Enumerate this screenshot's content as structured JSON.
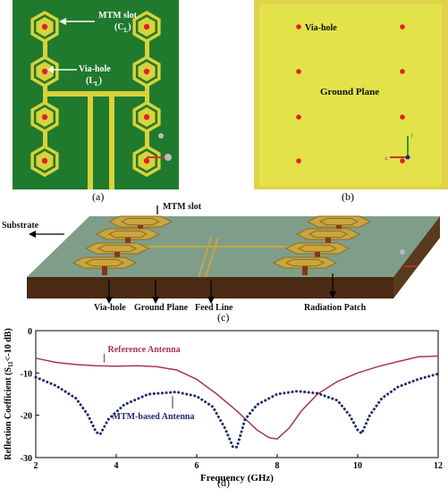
{
  "figure": {
    "panel_a": {
      "caption": "(a)",
      "mtm_slot_label": "MTM slot",
      "mtm_slot_symbol": "(C",
      "mtm_slot_sub": "L",
      "via_hole_label": "Via-hole",
      "via_hole_symbol": "(L",
      "via_hole_sub": "L",
      "colors": {
        "substrate": "#1f7a2e",
        "metal": "#d9d23a",
        "via": "#e0202a"
      }
    },
    "panel_b": {
      "caption": "(b)",
      "via_hole_label": "Via-hole",
      "ground_plane_label": "Ground Plane",
      "colors": {
        "ground": "#e3e24a",
        "via": "#e0202a"
      }
    },
    "panel_c": {
      "caption": "(c)",
      "mtm_slot_label": "MTM slot",
      "substrate_label": "Substrate",
      "via_hole_label": "Via-hole",
      "ground_plane_label": "Ground Plane",
      "feed_line_label": "Feed Line",
      "radiation_patch_label": "Radiation Patch",
      "colors": {
        "top": "#7e9e8a",
        "front": "#4a2a12",
        "metal": "#c9a640"
      }
    },
    "panel_d": {
      "caption": "(d)"
    }
  },
  "chart_data": {
    "type": "line",
    "xlabel": "Frequency (GHz)",
    "ylabel": "Reflection Coefficient (S",
    "ylabel_sub": "11",
    "ylabel_tail": "<-10 dB)",
    "xlim": [
      2,
      12
    ],
    "ylim": [
      -30,
      0
    ],
    "xticks": [
      "2",
      "4",
      "6",
      "8",
      "10",
      "12"
    ],
    "yticks": [
      "0",
      "-10",
      "-20",
      "-30"
    ],
    "series": [
      {
        "name": "Reference Antenna",
        "color": "#a3384a",
        "style": "solid",
        "x": [
          2.0,
          2.5,
          3.0,
          3.5,
          4.0,
          4.5,
          5.0,
          5.5,
          6.0,
          6.5,
          7.0,
          7.5,
          7.8,
          8.0,
          8.3,
          8.6,
          9.0,
          9.5,
          10.0,
          10.5,
          11.0,
          11.5,
          12.0
        ],
        "y": [
          -6.5,
          -7.5,
          -8.0,
          -8.3,
          -8.4,
          -8.3,
          -8.5,
          -9.3,
          -11.5,
          -15.0,
          -19.0,
          -23.5,
          -25.3,
          -25.6,
          -23.0,
          -19.0,
          -15.0,
          -12.0,
          -10.0,
          -8.5,
          -7.3,
          -6.2,
          -6.0
        ]
      },
      {
        "name": "MTM-based Antenna",
        "color": "#1f2a6e",
        "style": "dotted",
        "x": [
          2.0,
          2.5,
          3.0,
          3.3,
          3.5,
          3.6,
          3.8,
          4.2,
          4.8,
          5.5,
          6.0,
          6.4,
          6.7,
          6.9,
          7.0,
          7.2,
          7.5,
          8.0,
          8.5,
          9.0,
          9.5,
          9.8,
          10.0,
          10.1,
          10.3,
          10.6,
          11.0,
          11.5,
          12.0
        ],
        "y": [
          -11.0,
          -13.0,
          -16.0,
          -20.0,
          -24.0,
          -24.5,
          -21.0,
          -17.5,
          -15.0,
          -14.5,
          -15.5,
          -18.0,
          -23.0,
          -27.5,
          -27.5,
          -21.0,
          -17.5,
          -15.0,
          -14.3,
          -14.8,
          -16.5,
          -20.0,
          -23.5,
          -24.3,
          -20.0,
          -16.0,
          -13.3,
          -11.5,
          -10.2
        ]
      }
    ]
  }
}
